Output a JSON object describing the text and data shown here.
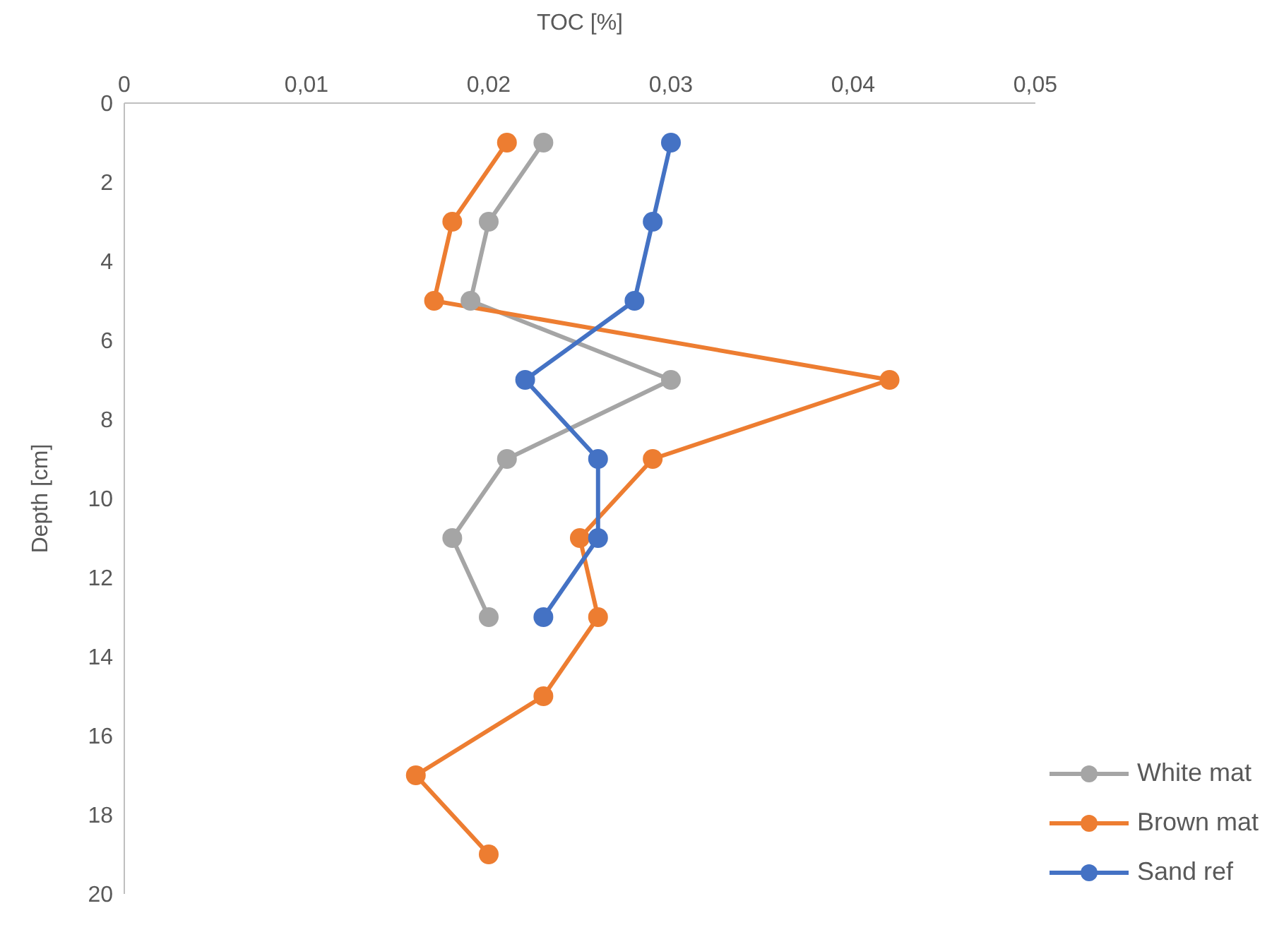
{
  "chart_data": {
    "type": "line",
    "xlabel": "TOC [%]",
    "ylabel": "Depth [cm]",
    "xlim": [
      0,
      0.05
    ],
    "xticks": [
      0,
      {
        "value": 0.01,
        "label": "0,01"
      },
      {
        "value": 0.02,
        "label": "0,02"
      },
      {
        "value": 0.03,
        "label": "0,03"
      },
      {
        "value": 0.04,
        "label": "0,04"
      },
      {
        "value": 0.05,
        "label": "0,05"
      }
    ],
    "ylim": [
      20,
      0
    ],
    "yticks": [
      0,
      2,
      4,
      6,
      8,
      10,
      12,
      14,
      16,
      18,
      20
    ],
    "grid": false,
    "legend": "bottom right",
    "marker": "circle",
    "line_style": "solid",
    "series": [
      {
        "name": "White mat",
        "color": "#a5a5a5",
        "x": [
          0.023,
          0.02,
          0.019,
          0.03,
          0.021,
          0.018,
          0.02
        ],
        "values": [
          1,
          3,
          5,
          7,
          9,
          11,
          13
        ]
      },
      {
        "name": "Brown mat",
        "color": "#ed7d31",
        "x": [
          0.021,
          0.018,
          0.017,
          0.042,
          0.029,
          0.025,
          0.026,
          0.023,
          0.016,
          0.02
        ],
        "values": [
          1,
          3,
          5,
          7,
          9,
          11,
          13,
          15,
          17,
          19
        ]
      },
      {
        "name": "Sand ref",
        "color": "#4472c4",
        "x": [
          0.03,
          0.029,
          0.028,
          0.022,
          0.026,
          0.026,
          0.023
        ],
        "values": [
          1,
          3,
          5,
          7,
          9,
          11,
          13
        ]
      }
    ]
  }
}
